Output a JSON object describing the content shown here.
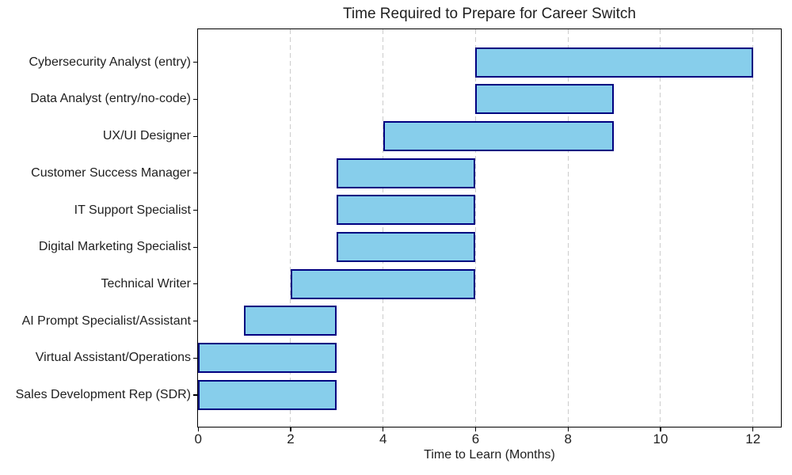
{
  "chart_data": {
    "type": "bar",
    "orientation": "horizontal",
    "title": "Time Required to Prepare for Career Switch",
    "xlabel": "Time to Learn (Months)",
    "ylabel": "",
    "categories": [
      "Cybersecurity Analyst (entry)",
      "Data Analyst (entry/no-code)",
      "UX/UI Designer",
      "Customer Success Manager",
      "IT Support Specialist",
      "Digital Marketing Specialist",
      "Technical Writer",
      "AI Prompt Specialist/Assistant",
      "Virtual Assistant/Operations",
      "Sales Development Rep (SDR)"
    ],
    "ranges": [
      [
        6,
        12
      ],
      [
        6,
        9
      ],
      [
        4,
        9
      ],
      [
        3,
        6
      ],
      [
        3,
        6
      ],
      [
        3,
        6
      ],
      [
        2,
        6
      ],
      [
        1,
        3
      ],
      [
        0,
        3
      ],
      [
        0,
        3
      ]
    ],
    "x_ticks": [
      0,
      2,
      4,
      6,
      8,
      10,
      12
    ],
    "xlim": [
      0,
      12.6
    ],
    "grid": {
      "axis": "x",
      "style": "dashed",
      "color": "#cccccc"
    },
    "legend": "none",
    "colors": {
      "bar_fill": "#87CEEB",
      "bar_edge": "#000080",
      "spine": "#000000",
      "text": "#1f1f1f"
    }
  }
}
